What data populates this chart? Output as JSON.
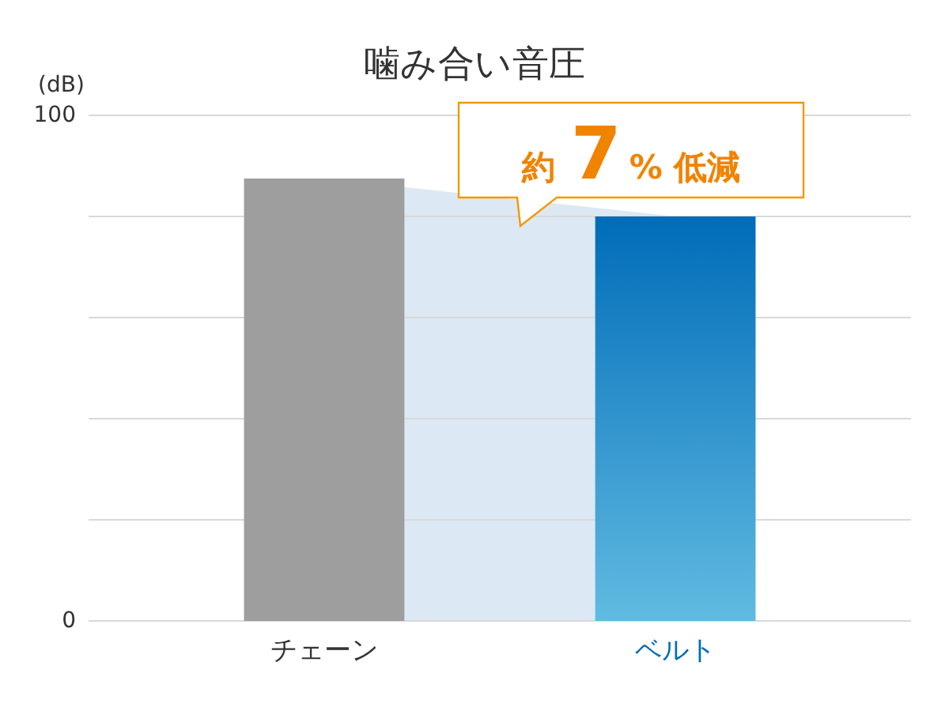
{
  "chart_data": {
    "type": "bar",
    "title": "噛み合い音圧",
    "ylabel": "(dB)",
    "categories": [
      "チェーン",
      "ベルト"
    ],
    "series": [
      {
        "type": "area",
        "color": "#dce8f4",
        "values": [
          87.5,
          80
        ]
      },
      {
        "colors": [
          "#9e9e9e",
          "#006cb8"
        ],
        "values": [
          87.5,
          80
        ]
      }
    ],
    "ylim": [
      0,
      100
    ],
    "yticks": [
      0,
      {
        "value": 20,
        "label": null
      },
      {
        "value": 40,
        "label": null
      },
      {
        "value": 60,
        "label": null
      },
      {
        "value": 80,
        "label": null
      },
      100
    ],
    "grid": "y",
    "annotations": [
      "約**7**% 低減"
    ]
  }
}
